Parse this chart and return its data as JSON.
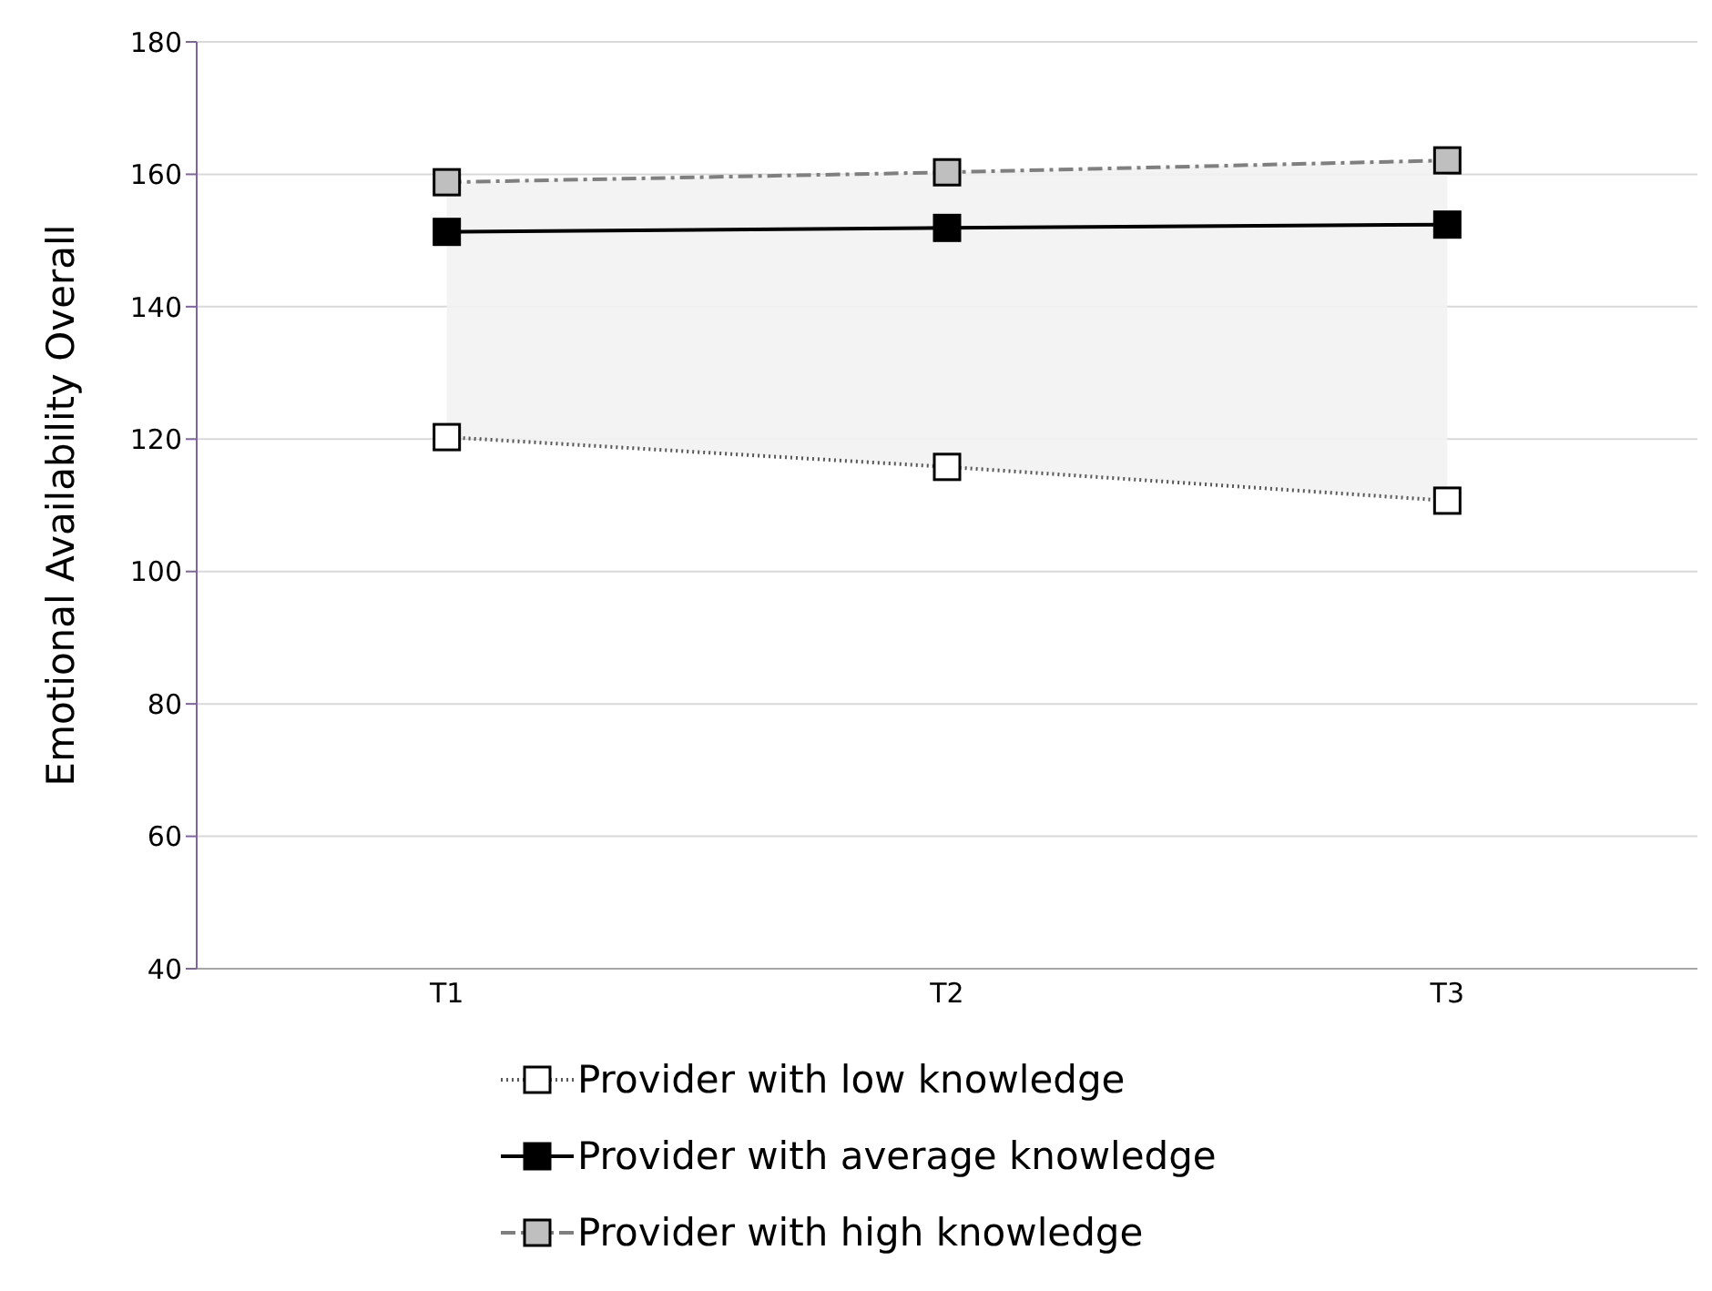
{
  "chart_data": {
    "type": "line",
    "ylabel": "Emotional  Availability Overall",
    "categories": [
      "T1",
      "T2",
      "T3"
    ],
    "series": [
      {
        "name": "Provider with low knowledge",
        "color": "#ffffff",
        "values": [
          120.3,
          115.8,
          110.7
        ],
        "line_style": "dotted"
      },
      {
        "name": "Provider with average knowledge",
        "color": "#000000",
        "values": [
          151.3,
          151.9,
          152.4
        ],
        "line_style": "solid",
        "lower": [
          120.3,
          115.8,
          110.7
        ],
        "upper": [
          158.8,
          160.3,
          162.1
        ]
      },
      {
        "name": "Provider with high knowledge",
        "color": "#bfbfbf",
        "values": [
          158.8,
          160.3,
          162.1
        ],
        "line_style": "dashed"
      }
    ],
    "ylim": [
      40,
      180
    ],
    "yticks": [
      40,
      60,
      80,
      100,
      120,
      140,
      160,
      180
    ],
    "grid": "y",
    "legend": "bottom",
    "marker": "square"
  }
}
